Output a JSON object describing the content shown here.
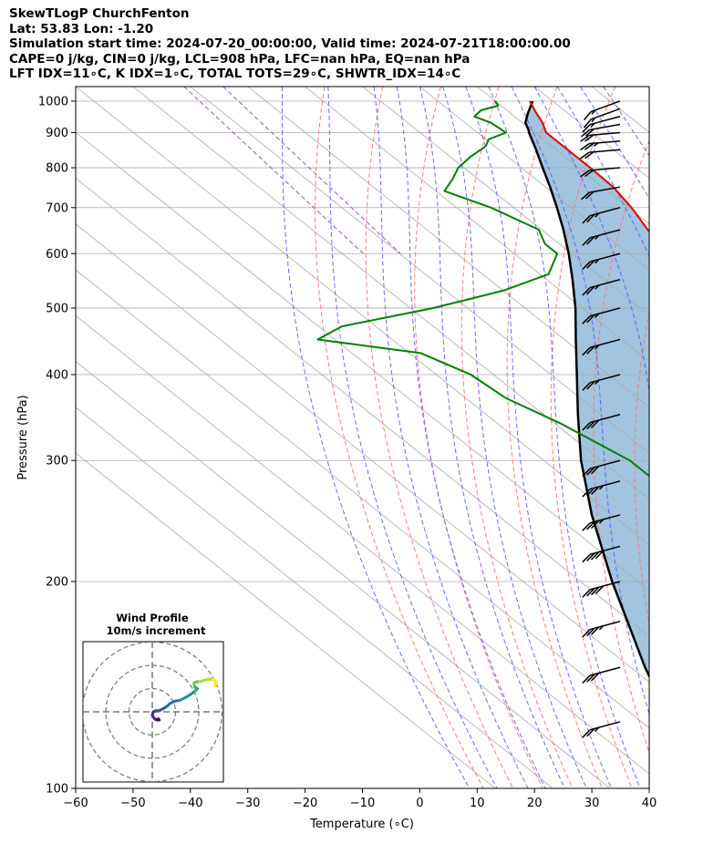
{
  "header": {
    "line1": "SkewTLogP ChurchFenton",
    "line2": "Lat: 53.83   Lon: -1.20",
    "line3": "Simulation start time: 2024-07-20_00:00:00, Valid time: 2024-07-21T18:00:00.00",
    "line4": "CAPE=0 j/kg, CIN=0 j/kg, LCL=908 hPa, LFC=nan hPa, EQ=nan hPa",
    "line5": "LFT IDX=11∘C, K IDX=1∘C, TOTAL TOTS=29∘C, SHWTR_IDX=14∘C"
  },
  "colors": {
    "temperature": "#e00000",
    "dewpoint": "#008000",
    "parcel": "#000000",
    "cape_fill": "#a2c4de",
    "dry_adiabat": "#ff7070",
    "moist_adiabat": "#5b5bff",
    "mixing_ratio": "#9a3fc0",
    "isotherm": "#aaaaaa"
  },
  "chart_data": {
    "type": "skewt",
    "xlabel": "Temperature (∘C)",
    "ylabel": "Pressure (hPa)",
    "xlim": [
      -60,
      40
    ],
    "ylim": [
      1050,
      100
    ],
    "x_ticks": [
      "−60",
      "−50",
      "−40",
      "−30",
      "−20",
      "−10",
      "0",
      "10",
      "20",
      "30",
      "40"
    ],
    "y_ticks": [
      "1000",
      "900",
      "800",
      "700",
      "600",
      "500",
      "400",
      "300",
      "200",
      "100"
    ],
    "grid": true,
    "skew_degrees_per_log_decade": 150,
    "temperature_profile": {
      "pressure": [
        1000,
        960,
        930,
        900,
        850,
        800,
        750,
        700,
        650,
        600,
        550,
        500,
        450,
        400,
        350,
        300,
        280,
        250,
        220,
        200,
        180,
        160,
        140,
        120,
        110,
        100
      ],
      "temperature": [
        16.0,
        14.5,
        13.5,
        12.0,
        12.0,
        12.0,
        11.8,
        10.5,
        8.5,
        6.5,
        4.5,
        2.0,
        -2.5,
        -7.5,
        -12.5,
        -18.5,
        -23.5,
        -29.0,
        -35.0,
        -39.5,
        -45.0,
        -51.5,
        -57.0,
        -61.5,
        -64.5,
        -68.5
      ]
    },
    "dewpoint_profile": {
      "pressure": [
        1000,
        985,
        970,
        950,
        930,
        900,
        880,
        860,
        830,
        800,
        770,
        740,
        700,
        650,
        620,
        600,
        560,
        530,
        500,
        470,
        450,
        430,
        400,
        370,
        340,
        300,
        280,
        260,
        240,
        220,
        200,
        190,
        180,
        170,
        160,
        150,
        140,
        120,
        110,
        100
      ],
      "dewpoint": [
        10.0,
        9.5,
        5.5,
        3.0,
        4.5,
        5.0,
        0.5,
        -1.5,
        -6.5,
        -11.0,
        -14.5,
        -18.5,
        -14.0,
        -10.5,
        -12.5,
        -12.5,
        -18.5,
        -30.0,
        -46.0,
        -66.0,
        -73.0,
        -58.0,
        -54.0,
        -53.0,
        -49.0,
        -45.0,
        -45.0,
        -45.5,
        -48.0,
        -52.5,
        -59.0,
        -62.0,
        -61.5,
        -62.0,
        -63.0,
        -65.5,
        -64.0,
        -62.0,
        -61.0,
        -61.0
      ]
    },
    "parcel_profile": {
      "pressure": [
        1000,
        960,
        930,
        908,
        900,
        850,
        800,
        750,
        700,
        650,
        600,
        550,
        500,
        450,
        400,
        350,
        300,
        250,
        200,
        150,
        120,
        100
      ],
      "temperature": [
        16.5,
        13.0,
        10.5,
        9.5,
        9.0,
        6.5,
        3.7,
        0.8,
        -2.5,
        -6.2,
        -10.5,
        -15.5,
        -21.2,
        -28.0,
        -35.5,
        -44.0,
        -53.5,
        -63.5,
        -74.5,
        -87.5,
        -96.5,
        -104.0
      ]
    },
    "cape_cin_shading": "area between parcel and temperature profiles",
    "dry_adiabats_theta_k": [
      253,
      263,
      273,
      283,
      293,
      303,
      313,
      323,
      333,
      343,
      353,
      363,
      373,
      383,
      393,
      403,
      413
    ],
    "moist_adiabats_start_t_c": [
      -24,
      -16,
      -8,
      -4,
      0,
      4,
      8,
      12,
      16,
      20,
      24,
      28,
      32
    ],
    "mixing_ratio_lines_gkg": [
      0.1,
      0.2
    ],
    "wind_barbs": {
      "note": "barbs drawn along right side; all westerly",
      "pressure": [
        1000,
        975,
        950,
        925,
        900,
        875,
        850,
        800,
        750,
        700,
        650,
        600,
        550,
        500,
        450,
        400,
        350,
        300,
        280,
        250,
        225,
        200,
        175,
        150,
        125,
        100
      ],
      "speed_kt": [
        15,
        15,
        15,
        20,
        20,
        25,
        20,
        20,
        20,
        25,
        25,
        25,
        25,
        25,
        25,
        25,
        30,
        30,
        35,
        35,
        40,
        40,
        35,
        30,
        25,
        25
      ],
      "direction_deg": [
        250,
        250,
        255,
        260,
        265,
        265,
        265,
        265,
        260,
        255,
        255,
        255,
        255,
        255,
        255,
        255,
        255,
        255,
        255,
        255,
        255,
        255,
        255,
        255,
        255,
        255
      ]
    },
    "hodograph": {
      "title": "Wind Profile",
      "subtitle": "10m/s increment",
      "ring_count": 3,
      "u_ms": [
        2.5,
        3.0,
        2.0,
        1.0,
        0.0,
        0.5,
        1.5,
        3.0,
        5.0,
        6.5,
        7.5,
        9.5,
        12.0,
        14.0,
        16.5,
        18.5,
        19.5,
        18.5,
        18.0,
        18.0,
        19.5,
        20.5,
        22.0,
        24.0,
        26.0,
        27.5,
        27.0
      ],
      "v_ms": [
        -3.0,
        -3.5,
        -3.5,
        -3.0,
        -1.5,
        0.0,
        0.5,
        0.5,
        1.5,
        2.5,
        3.5,
        4.5,
        5.0,
        6.0,
        7.5,
        9.0,
        10.0,
        10.5,
        11.5,
        12.5,
        13.0,
        13.0,
        13.5,
        14.0,
        14.0,
        13.0,
        11.0
      ]
    }
  }
}
